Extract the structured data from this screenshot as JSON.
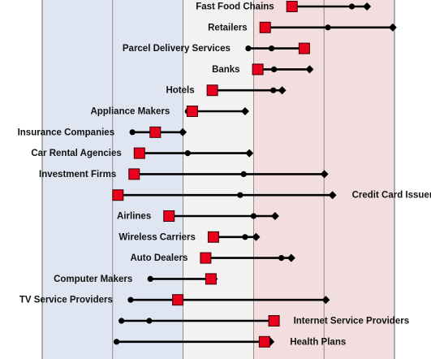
{
  "chart_data": {
    "type": "range_dot",
    "title": "",
    "xlabel": "",
    "ylabel": "",
    "xlim": [
      0,
      100
    ],
    "grid": true,
    "bands": [
      {
        "from": 0,
        "to": 40,
        "color": "#dfe6f2"
      },
      {
        "from": 40,
        "to": 60,
        "color": "#f2f2f2"
      },
      {
        "from": 60,
        "to": 100,
        "color": "#f2dede"
      }
    ],
    "gridlines": [
      20,
      40,
      60,
      80
    ],
    "colors": {
      "marker": "#e8001c",
      "line": "#000000",
      "grid": "#777777"
    },
    "categories": [
      "Fast Food Chains",
      "Retailers",
      "Parcel Delivery Services",
      "Banks",
      "Hotels",
      "Appliance Makers",
      "Insurance Companies",
      "Car Rental Agencies",
      "Investment Firms",
      "Credit Card Issuers",
      "Airlines",
      "Wireless Carriers",
      "Auto Dealers",
      "Computer Makers",
      "TV Service Providers",
      "Internet Service Providers",
      "Health Plans"
    ],
    "series": [
      {
        "name": "",
        "values": [
          70.9,
          63.3,
          74.4,
          61.2,
          48.3,
          42.6,
          32.1,
          27.6,
          26.1,
          21.5,
          36.0,
          48.6,
          46.4,
          47.9,
          38.5,
          65.8,
          63.1
        ]
      },
      {
        "name": "",
        "values": [
          92.2,
          99.5,
          65.1,
          75.9,
          65.6,
          41.3,
          39.9,
          41.3,
          57.2,
          56.2,
          60.0,
          60.7,
          67.9,
          48.7,
          25.1,
          22.5,
          21.1
        ]
      },
      {
        "name": "",
        "values": [
          87.9,
          81.1,
          58.5,
          65.8,
          68.1,
          57.6,
          25.6,
          58.8,
          80.1,
          82.4,
          66.1,
          57.6,
          70.7,
          30.7,
          80.5,
          30.4,
          64.8
        ]
      }
    ]
  }
}
